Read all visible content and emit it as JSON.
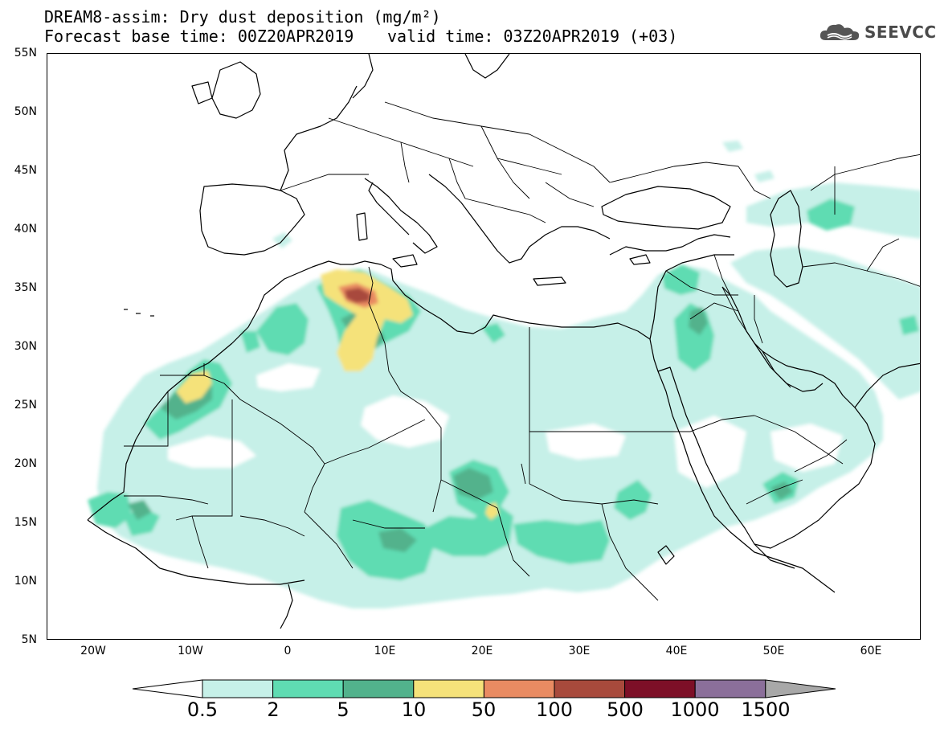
{
  "title": {
    "line1": "DREAM8-assim: Dry dust deposition (mg/m²)",
    "line2": "Forecast base time: 00Z20APR2019",
    "valid": "valid time: 03Z20APR2019 (+03)"
  },
  "logo": {
    "text": "SEEVCCC",
    "icon": "cloud-icon"
  },
  "map": {
    "extent": {
      "lon": [
        -25,
        65
      ],
      "lat": [
        5,
        55
      ]
    },
    "lat_labels": [
      "55N",
      "50N",
      "45N",
      "40N",
      "35N",
      "30N",
      "25N",
      "20N",
      "15N",
      "10N",
      "5N"
    ],
    "lon_labels": [
      "20W",
      "10W",
      "0",
      "10E",
      "20E",
      "30E",
      "40E",
      "50E",
      "60E"
    ]
  },
  "colorbar": {
    "labels": [
      "0.5",
      "2",
      "5",
      "10",
      "50",
      "100",
      "500",
      "1000",
      "1500"
    ],
    "colors": [
      "#c6f0e8",
      "#5fdcb2",
      "#52b28c",
      "#f5e27a",
      "#e98b62",
      "#a84a3c",
      "#7d0f27",
      "#8b6f9a",
      "#a8a8a8"
    ]
  }
}
